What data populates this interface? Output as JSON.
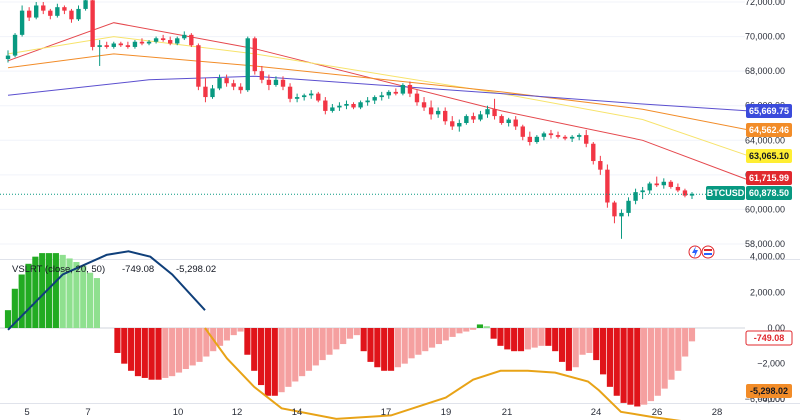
{
  "chart_data": [
    {
      "type": "candlestick",
      "symbol": "BTCUSD",
      "y_ticks": [
        "72,000.00",
        "70,000.00",
        "68,000.00",
        "66,000.00",
        "64,000.00",
        "62,000.00",
        "60,000.00",
        "58,000.00"
      ],
      "x_ticks": [
        "5",
        "7",
        "10",
        "12",
        "14",
        "17",
        "19",
        "21",
        "24",
        "26",
        "28"
      ],
      "candles": [
        [
          68700,
          69200,
          68500,
          68900
        ],
        [
          68900,
          70200,
          68800,
          70100
        ],
        [
          70100,
          71800,
          70000,
          71500
        ],
        [
          71500,
          71700,
          70900,
          71100
        ],
        [
          71100,
          72000,
          71000,
          71800
        ],
        [
          71800,
          72000,
          71300,
          71500
        ],
        [
          71500,
          71600,
          71000,
          71200
        ],
        [
          71200,
          71900,
          71100,
          71700
        ],
        [
          71700,
          71800,
          71300,
          71500
        ],
        [
          71500,
          71600,
          70800,
          71000
        ],
        [
          71000,
          71800,
          70900,
          71600
        ],
        [
          71600,
          72200,
          71500,
          72100
        ],
        [
          72100,
          72300,
          69200,
          69400
        ],
        [
          69400,
          69800,
          68300,
          69500
        ],
        [
          69500,
          69700,
          69300,
          69400
        ],
        [
          69400,
          69700,
          69300,
          69600
        ],
        [
          69600,
          69700,
          69400,
          69500
        ],
        [
          69500,
          69700,
          69300,
          69400
        ],
        [
          69400,
          69800,
          69300,
          69700
        ],
        [
          69700,
          69900,
          69500,
          69600
        ],
        [
          69600,
          69800,
          69500,
          69700
        ],
        [
          69700,
          70000,
          69600,
          69900
        ],
        [
          69900,
          70100,
          69700,
          69800
        ],
        [
          69800,
          70000,
          69500,
          69600
        ],
        [
          69600,
          70000,
          69500,
          69900
        ],
        [
          69900,
          70300,
          69800,
          70100
        ],
        [
          70100,
          70200,
          69400,
          69500
        ],
        [
          69500,
          69600,
          66900,
          67100
        ],
        [
          67100,
          67600,
          66200,
          66500
        ],
        [
          66500,
          67200,
          66400,
          67000
        ],
        [
          67000,
          67800,
          66900,
          67600
        ],
        [
          67600,
          67800,
          67100,
          67300
        ],
        [
          67300,
          67500,
          66900,
          67100
        ],
        [
          67100,
          67300,
          66700,
          66900
        ],
        [
          66900,
          70000,
          66800,
          69900
        ],
        [
          69900,
          70000,
          67800,
          68000
        ],
        [
          68000,
          68300,
          67300,
          67500
        ],
        [
          67500,
          67800,
          66900,
          67200
        ],
        [
          67200,
          67700,
          67100,
          67500
        ],
        [
          67500,
          67700,
          66900,
          67100
        ],
        [
          67100,
          67300,
          66200,
          66400
        ],
        [
          66400,
          66700,
          66200,
          66500
        ],
        [
          66500,
          66700,
          66300,
          66600
        ],
        [
          66600,
          66900,
          66400,
          66700
        ],
        [
          66700,
          66800,
          66200,
          66300
        ],
        [
          66300,
          66500,
          65500,
          65700
        ],
        [
          65700,
          66100,
          65600,
          65900
        ],
        [
          65900,
          66200,
          65700,
          66000
        ],
        [
          66000,
          66300,
          65800,
          66100
        ],
        [
          66100,
          66200,
          65800,
          65900
        ],
        [
          65900,
          66300,
          65800,
          66200
        ],
        [
          66200,
          66500,
          66000,
          66300
        ],
        [
          66300,
          66600,
          66100,
          66500
        ],
        [
          66500,
          66800,
          66300,
          66600
        ],
        [
          66600,
          66900,
          66400,
          66800
        ],
        [
          66800,
          67000,
          66600,
          66700
        ],
        [
          66700,
          67300,
          66600,
          67200
        ],
        [
          67200,
          67400,
          66500,
          66700
        ],
        [
          66700,
          66900,
          66000,
          66200
        ],
        [
          66200,
          66500,
          65700,
          65900
        ],
        [
          65900,
          66300,
          65200,
          65500
        ],
        [
          65500,
          65900,
          65300,
          65700
        ],
        [
          65700,
          65900,
          64900,
          65100
        ],
        [
          65100,
          65400,
          64600,
          64800
        ],
        [
          64800,
          65200,
          64500,
          65000
        ],
        [
          65000,
          65500,
          64900,
          65400
        ],
        [
          65400,
          65600,
          65000,
          65200
        ],
        [
          65200,
          65700,
          65100,
          65500
        ],
        [
          65500,
          66000,
          65300,
          65800
        ],
        [
          65800,
          66400,
          65200,
          65400
        ],
        [
          65400,
          65500,
          64900,
          65000
        ],
        [
          65000,
          65300,
          64800,
          65200
        ],
        [
          65200,
          65400,
          64600,
          64800
        ],
        [
          64800,
          64900,
          64000,
          64200
        ],
        [
          64200,
          64500,
          63700,
          63900
        ],
        [
          63900,
          64300,
          63800,
          64200
        ],
        [
          64200,
          64500,
          64000,
          64400
        ],
        [
          64400,
          64600,
          64100,
          64300
        ],
        [
          64300,
          64500,
          64100,
          64200
        ],
        [
          64200,
          64300,
          64000,
          64100
        ],
        [
          64100,
          64300,
          63900,
          64200
        ],
        [
          64200,
          64400,
          64000,
          64300
        ],
        [
          64300,
          64600,
          63600,
          63800
        ],
        [
          63800,
          63900,
          62600,
          62800
        ],
        [
          62800,
          63100,
          62000,
          62300
        ],
        [
          62300,
          62600,
          60100,
          60400
        ],
        [
          60400,
          60500,
          59200,
          59600
        ],
        [
          59600,
          60000,
          58300,
          59800
        ],
        [
          59800,
          60700,
          59600,
          60500
        ],
        [
          60500,
          61200,
          60300,
          61000
        ],
        [
          61000,
          61300,
          60600,
          61100
        ],
        [
          61100,
          61600,
          60900,
          61500
        ],
        [
          61500,
          61900,
          61300,
          61400
        ],
        [
          61400,
          61800,
          61200,
          61600
        ],
        [
          61600,
          61700,
          61200,
          61300
        ],
        [
          61300,
          61500,
          61000,
          61100
        ],
        [
          61100,
          61200,
          60700,
          60800
        ],
        [
          60800,
          61000,
          60600,
          60900
        ]
      ],
      "moving_averages": [
        {
          "color": "#e5484d",
          "values": [
            [
              0,
              68600
            ],
            [
              15,
              70800
            ],
            [
              35,
              69300
            ],
            [
              70,
              65700
            ],
            [
              90,
              64000
            ],
            [
              105,
              61700
            ]
          ]
        },
        {
          "color": "#f7e36a",
          "values": [
            [
              0,
              69000
            ],
            [
              15,
              70000
            ],
            [
              35,
              69000
            ],
            [
              70,
              66700
            ],
            [
              90,
              65200
            ],
            [
              105,
              63100
            ]
          ]
        },
        {
          "color": "#f28c28",
          "values": [
            [
              0,
              68200
            ],
            [
              15,
              69000
            ],
            [
              35,
              68300
            ],
            [
              70,
              66800
            ],
            [
              90,
              65800
            ],
            [
              105,
              64600
            ]
          ]
        },
        {
          "color": "#5b4fcf",
          "values": [
            [
              0,
              66600
            ],
            [
              20,
              67500
            ],
            [
              35,
              67700
            ],
            [
              70,
              66700
            ],
            [
              90,
              66100
            ],
            [
              105,
              65700
            ]
          ]
        }
      ],
      "last_price_line": 60878.5,
      "price_tags": [
        {
          "label": "",
          "value": "65,669.75",
          "color": "#3b4bdb",
          "text_color": "#ffffff"
        },
        {
          "label": "",
          "value": "64,562.46",
          "color": "#f28c28",
          "text_color": "#ffffff"
        },
        {
          "label": "",
          "value": "63,065.10",
          "color": "#ffee33",
          "text_color": "#131722"
        },
        {
          "label": "",
          "value": "61,715.99",
          "color": "#e0282e",
          "text_color": "#ffffff"
        },
        {
          "label": "BTCUSD",
          "value": "60,878.50",
          "color": "#089981",
          "text_color": "#ffffff"
        }
      ]
    },
    {
      "type": "histogram",
      "title": "VSLRT (close, 20, 50)",
      "value_a": "-749.08",
      "value_b": "-5,298.02",
      "value_a_color": "#e0282e",
      "value_b_color": "#f28c28",
      "y_ticks": [
        "4,000.00",
        "2,000.00",
        "0.00",
        "−2,000",
        "−4,000",
        "−6,000.00"
      ],
      "histogram": [
        1000,
        2200,
        3000,
        3600,
        4000,
        4200,
        4200,
        4200,
        4100,
        3900,
        3700,
        3500,
        3100,
        2800,
        0,
        0,
        -1400,
        -2000,
        -2400,
        -2700,
        -2800,
        -2900,
        -2900,
        -2800,
        -2700,
        -2500,
        -2300,
        -2100,
        -1900,
        -1600,
        -1300,
        -1000,
        -700,
        -400,
        -200,
        -1500,
        -2400,
        -3200,
        -3800,
        -3800,
        -3600,
        -3300,
        -3000,
        -2700,
        -2400,
        -2100,
        -1800,
        -1500,
        -1200,
        -900,
        -600,
        -400,
        -1300,
        -1900,
        -2200,
        -2400,
        -2400,
        -2200,
        -2000,
        -1700,
        -1500,
        -1300,
        -1100,
        -900,
        -700,
        -500,
        -300,
        -200,
        -100,
        200,
        100,
        -600,
        -1000,
        -1200,
        -1300,
        -1300,
        -1200,
        -1100,
        -1000,
        -1000,
        -1300,
        -1900,
        -2400,
        -2200,
        -1500,
        -1400,
        -1800,
        -2600,
        -3300,
        -3800,
        -4200,
        -4300,
        -4400,
        -4300,
        -4100,
        -3800,
        -3400,
        -2900,
        -2400,
        -1600,
        -749
      ],
      "blue_line": [
        [
          0,
          -100
        ],
        [
          10,
          3000
        ],
        [
          18,
          4100
        ],
        [
          22,
          4300
        ],
        [
          26,
          4000
        ],
        [
          30,
          3000
        ],
        [
          36,
          1000
        ]
      ],
      "orange_line": [
        [
          36,
          0
        ],
        [
          40,
          -1700
        ],
        [
          45,
          -3300
        ],
        [
          50,
          -4500
        ],
        [
          60,
          -5100
        ],
        [
          70,
          -4900
        ],
        [
          80,
          -3900
        ],
        [
          85,
          -2900
        ],
        [
          90,
          -2400
        ],
        [
          95,
          -2400
        ],
        [
          100,
          -2500
        ],
        [
          106,
          -3000
        ],
        [
          108,
          -3500
        ],
        [
          112,
          -4700
        ],
        [
          118,
          -5000
        ],
        [
          125,
          -5300
        ]
      ]
    }
  ]
}
